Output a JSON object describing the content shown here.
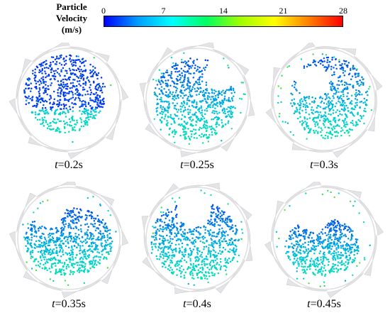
{
  "colorbar": {
    "title_line1": "Particle",
    "title_line2": "Velocity",
    "title_line3": "(m/s)",
    "ticks": [
      "0",
      "7",
      "14",
      "21",
      "28"
    ],
    "min": 0,
    "max": 28,
    "colors": [
      "#0000ff",
      "#00a0ff",
      "#00ffff",
      "#00ff60",
      "#a0ff00",
      "#ffff00",
      "#ff8000",
      "#ff0000"
    ]
  },
  "panels": [
    {
      "t_symbol": "t",
      "t_value": "=0.2s"
    },
    {
      "t_symbol": "t",
      "t_value": "=0.25s"
    },
    {
      "t_symbol": "t",
      "t_value": "=0.3s"
    },
    {
      "t_symbol": "t",
      "t_value": "=0.35s"
    },
    {
      "t_symbol": "t",
      "t_value": "=0.4s"
    },
    {
      "t_symbol": "t",
      "t_value": "=0.45s"
    }
  ]
}
